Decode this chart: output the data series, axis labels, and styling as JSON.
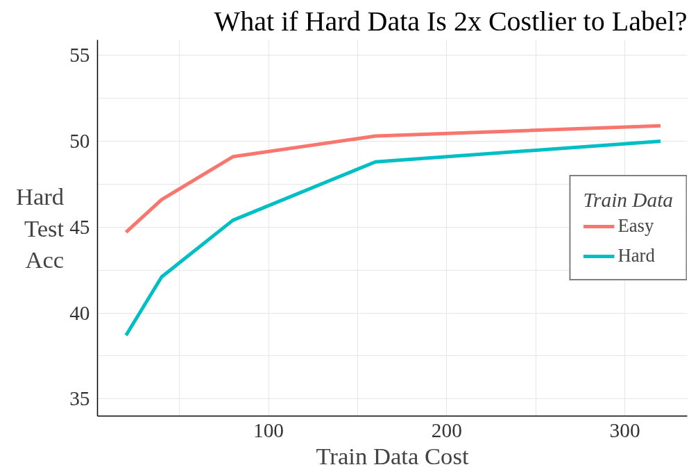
{
  "chart_data": {
    "type": "line",
    "title": "What if Hard Data Is 2x Costlier to Label?",
    "xlabel": "Train Data Cost",
    "ylabel": "Hard Test Acc",
    "legend_title": "Train Data",
    "x": [
      20,
      40,
      80,
      160,
      320
    ],
    "series": [
      {
        "name": "Easy",
        "color": "#f8766d",
        "values": [
          44.7,
          46.6,
          49.1,
          50.3,
          50.9
        ]
      },
      {
        "name": "Hard",
        "color": "#00bfc4",
        "values": [
          38.7,
          42.1,
          45.4,
          48.8,
          50.0
        ]
      }
    ],
    "xlim": [
      4,
      335
    ],
    "ylim": [
      34,
      55.9
    ],
    "xticks": [
      {
        "value": 50,
        "label": null
      },
      100,
      {
        "value": 150,
        "label": null
      },
      200,
      {
        "value": 250,
        "label": null
      },
      300
    ],
    "yticks": [
      35,
      {
        "value": 37.5,
        "label": null
      },
      40,
      {
        "value": 42.5,
        "label": null
      },
      45,
      {
        "value": 47.5,
        "label": null
      },
      50,
      {
        "value": 52.5,
        "label": null
      },
      55
    ],
    "grid": true,
    "legend": "right",
    "line_style": "solid",
    "marker": "none"
  }
}
